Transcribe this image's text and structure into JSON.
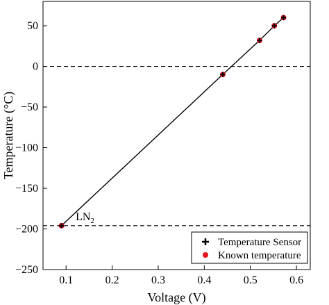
{
  "chart_data": {
    "type": "scatter",
    "xlabel": "Voltage (V)",
    "ylabel": "Temperature (°C)",
    "xlim": [
      0.05,
      0.63
    ],
    "ylim": [
      -250,
      80
    ],
    "xticks": [
      0.1,
      0.2,
      0.3,
      0.4,
      0.5,
      0.6
    ],
    "yticks": [
      -250,
      -200,
      -150,
      -100,
      -50,
      0,
      50
    ],
    "xtick_labels": [
      "0.1",
      "0.2",
      "0.3",
      "0.4",
      "0.5",
      "0.6"
    ],
    "ytick_labels": [
      "−250",
      "−200",
      "−150",
      "−100",
      "−50",
      "0",
      "50"
    ],
    "grid": false,
    "legend_position": "bottom-right",
    "series": [
      {
        "name": "Temperature Sensor",
        "marker": "plus",
        "color": "#000000",
        "connected": true,
        "points": [
          {
            "x": 0.09,
            "y": -196
          },
          {
            "x": 0.44,
            "y": -10
          },
          {
            "x": 0.52,
            "y": 32
          },
          {
            "x": 0.552,
            "y": 50
          },
          {
            "x": 0.572,
            "y": 60
          }
        ]
      },
      {
        "name": "Known temperature",
        "marker": "circle",
        "color": "#e8141c",
        "points": [
          {
            "x": 0.09,
            "y": -196
          },
          {
            "x": 0.44,
            "y": -10
          },
          {
            "x": 0.52,
            "y": 32
          },
          {
            "x": 0.552,
            "y": 50
          },
          {
            "x": 0.572,
            "y": 60
          }
        ]
      }
    ],
    "reference_lines": [
      {
        "orientation": "horizontal",
        "y": 0,
        "style": "dashed"
      },
      {
        "orientation": "horizontal",
        "y": -196,
        "style": "dashed"
      }
    ],
    "annotations": [
      {
        "text_main": "LN",
        "text_sub": "2",
        "x": 0.115,
        "y": -196
      }
    ]
  }
}
